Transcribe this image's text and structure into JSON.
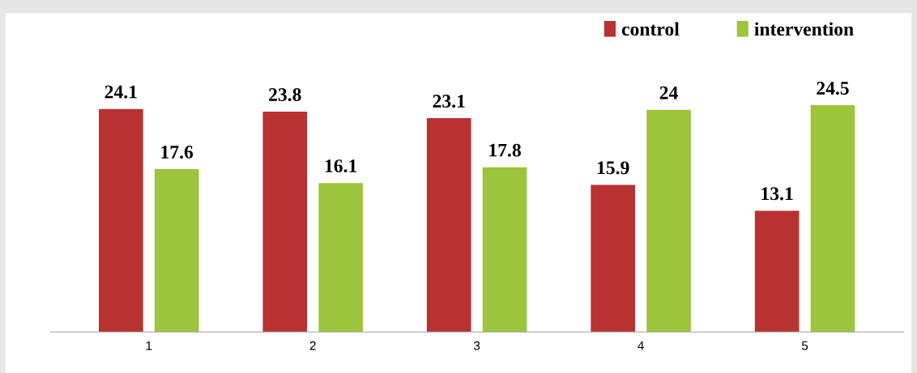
{
  "chart_data": {
    "type": "bar",
    "categories": [
      "1",
      "2",
      "3",
      "4",
      "5"
    ],
    "series": [
      {
        "name": "control",
        "color": "#b83232",
        "values": [
          24.1,
          23.8,
          23.1,
          15.9,
          13.1
        ]
      },
      {
        "name": "intervention",
        "color": "#9cc43c",
        "values": [
          17.6,
          16.1,
          17.8,
          24,
          24.5
        ]
      }
    ],
    "data_labels": true,
    "legend": "top right"
  }
}
